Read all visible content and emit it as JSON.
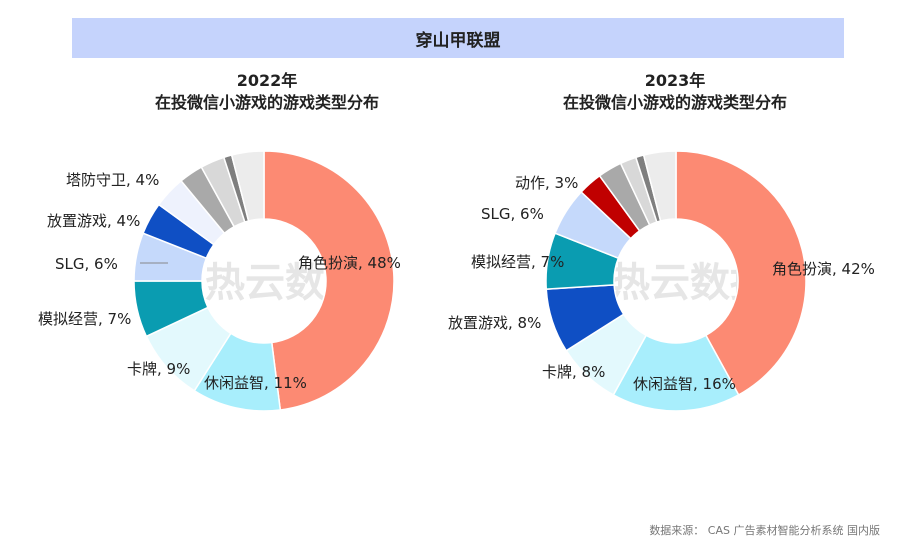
{
  "banner": {
    "title": "穿山甲联盟"
  },
  "watermark": "热云数据",
  "source": "数据来源： CAS 广告素材智能分析系统 国内版",
  "chart_data": [
    {
      "type": "pie",
      "title_line1": "2022年",
      "title_line2": "在投微信小游戏的游戏类型分布",
      "slices": [
        {
          "label": "角色扮演",
          "value": 48,
          "display": "角色扮演, 48%",
          "color": "#fc8a73"
        },
        {
          "label": "休闲益智",
          "value": 11,
          "display": "休闲益智, 11%",
          "color": "#a8eefc"
        },
        {
          "label": "卡牌",
          "value": 9,
          "display": "卡牌, 9%",
          "color": "#e3f9fd"
        },
        {
          "label": "模拟经营",
          "value": 7,
          "display": "模拟经营, 7%",
          "color": "#0a9cb1"
        },
        {
          "label": "SLG",
          "value": 6,
          "display": "SLG, 6%",
          "color": "#c5d9fb"
        },
        {
          "label": "放置游戏",
          "value": 4,
          "display": "放置游戏, 4%",
          "color": "#0f4fc4"
        },
        {
          "label": "塔防守卫",
          "value": 4,
          "display": "塔防守卫, 4%",
          "color": "#eef2fd"
        },
        {
          "label": "",
          "value": 3,
          "display": "",
          "color": "#a9a9a9"
        },
        {
          "label": "",
          "value": 3,
          "display": "",
          "color": "#d8d8d8"
        },
        {
          "label": "",
          "value": 1,
          "display": "",
          "color": "#7f7f7f"
        },
        {
          "label": "",
          "value": 4,
          "display": "",
          "color": "#ececec"
        }
      ]
    },
    {
      "type": "pie",
      "title_line1": "2023年",
      "title_line2": "在投微信小游戏的游戏类型分布",
      "slices": [
        {
          "label": "角色扮演",
          "value": 42,
          "display": "角色扮演, 42%",
          "color": "#fc8a73"
        },
        {
          "label": "休闲益智",
          "value": 16,
          "display": "休闲益智, 16%",
          "color": "#a8eefc"
        },
        {
          "label": "卡牌",
          "value": 8,
          "display": "卡牌, 8%",
          "color": "#e3f9fd"
        },
        {
          "label": "放置游戏",
          "value": 8,
          "display": "放置游戏, 8%",
          "color": "#0f4fc4"
        },
        {
          "label": "模拟经营",
          "value": 7,
          "display": "模拟经营, 7%",
          "color": "#0a9cb1"
        },
        {
          "label": "SLG",
          "value": 6,
          "display": "SLG, 6%",
          "color": "#c5d9fb"
        },
        {
          "label": "动作",
          "value": 3,
          "display": "动作, 3%",
          "color": "#c00000"
        },
        {
          "label": "",
          "value": 3,
          "display": "",
          "color": "#a9a9a9"
        },
        {
          "label": "",
          "value": 2,
          "display": "",
          "color": "#d8d8d8"
        },
        {
          "label": "",
          "value": 1,
          "display": "",
          "color": "#7f7f7f"
        },
        {
          "label": "",
          "value": 4,
          "display": "",
          "color": "#ececec"
        }
      ]
    }
  ]
}
